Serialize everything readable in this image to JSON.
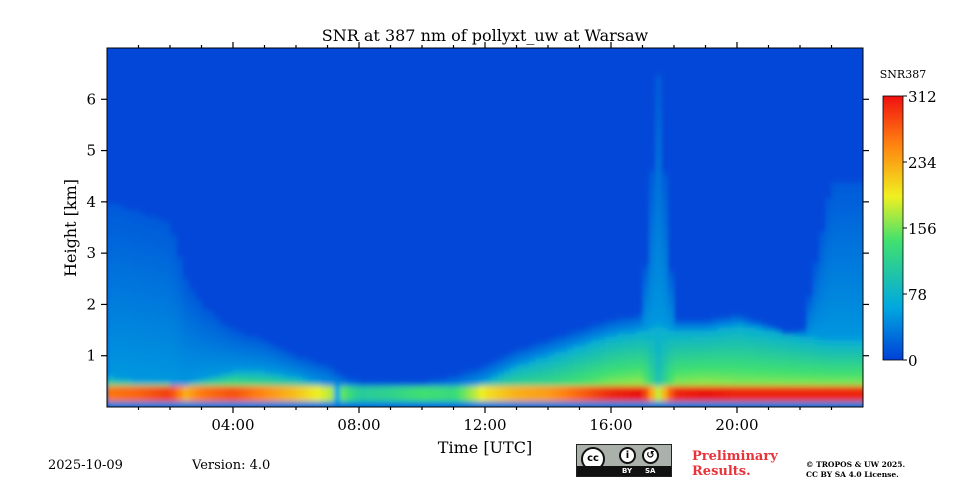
{
  "chart_data": {
    "type": "heatmap",
    "title": "SNR at 387 nm of pollyxt_uw at Warsaw",
    "xlabel": "Time [UTC]",
    "ylabel": "Height [km]",
    "xlim_hours": [
      0,
      24
    ],
    "ylim_km": [
      0,
      7
    ],
    "x_ticks": [
      {
        "value": 4,
        "label": "04:00"
      },
      {
        "value": 8,
        "label": "08:00"
      },
      {
        "value": 12,
        "label": "12:00"
      },
      {
        "value": 16,
        "label": "16:00"
      },
      {
        "value": 20,
        "label": "20:00"
      }
    ],
    "y_ticks": [
      {
        "value": 1,
        "label": "1"
      },
      {
        "value": 2,
        "label": "2"
      },
      {
        "value": 3,
        "label": "3"
      },
      {
        "value": 4,
        "label": "4"
      },
      {
        "value": 5,
        "label": "5"
      },
      {
        "value": 6,
        "label": "6"
      }
    ],
    "colorbar": {
      "label": "SNR387",
      "range": [
        0,
        312
      ],
      "ticks": [
        "312",
        "234",
        "156",
        "78",
        "0"
      ],
      "colormap": "jet",
      "colors": [
        "#0040d8",
        "#00b8d0",
        "#40e060",
        "#f0f020",
        "#ff8010",
        "#e81010"
      ]
    },
    "profile": {
      "description_hours": [
        0,
        1,
        2,
        2.5,
        3,
        4,
        5,
        6,
        7,
        7.5,
        8,
        9,
        10,
        11,
        12,
        13,
        14,
        15,
        16,
        17,
        17.5,
        18,
        19,
        20,
        21,
        22,
        23,
        24
      ],
      "boundary_layer_top_km": [
        0.6,
        0.5,
        0.45,
        0.4,
        0.55,
        0.7,
        0.7,
        0.6,
        0.4,
        0.35,
        0.25,
        0.25,
        0.25,
        0.3,
        0.5,
        0.8,
        1.0,
        1.2,
        1.4,
        1.5,
        1.6,
        1.5,
        1.5,
        1.6,
        1.5,
        1.4,
        1.3,
        1.3
      ],
      "peak_snr": [
        260,
        270,
        290,
        230,
        260,
        280,
        250,
        220,
        180,
        150,
        110,
        120,
        140,
        130,
        200,
        230,
        240,
        270,
        300,
        312,
        180,
        300,
        310,
        300,
        300,
        300,
        300,
        300
      ],
      "aerosol_plume_top_km": [
        4.0,
        3.8,
        3.6,
        2.5,
        2.0,
        1.5,
        1.3,
        1.0,
        0.8,
        0.6,
        0.5,
        0.5,
        0.5,
        0.6,
        0.8,
        1.1,
        1.3,
        1.5,
        1.7,
        1.8,
        6.5,
        1.7,
        1.7,
        1.8,
        1.6,
        1.2,
        4.4,
        4.4
      ]
    }
  },
  "footer": {
    "date": "2025-10-09",
    "version": "Version: 4.0",
    "preliminary": "Preliminary\nResults.",
    "copyright": "© TROPOS & UW 2025.\nCC BY SA 4.0 License.",
    "cc_by": "BY",
    "cc_sa": "SA",
    "cc_mark": "cc"
  }
}
